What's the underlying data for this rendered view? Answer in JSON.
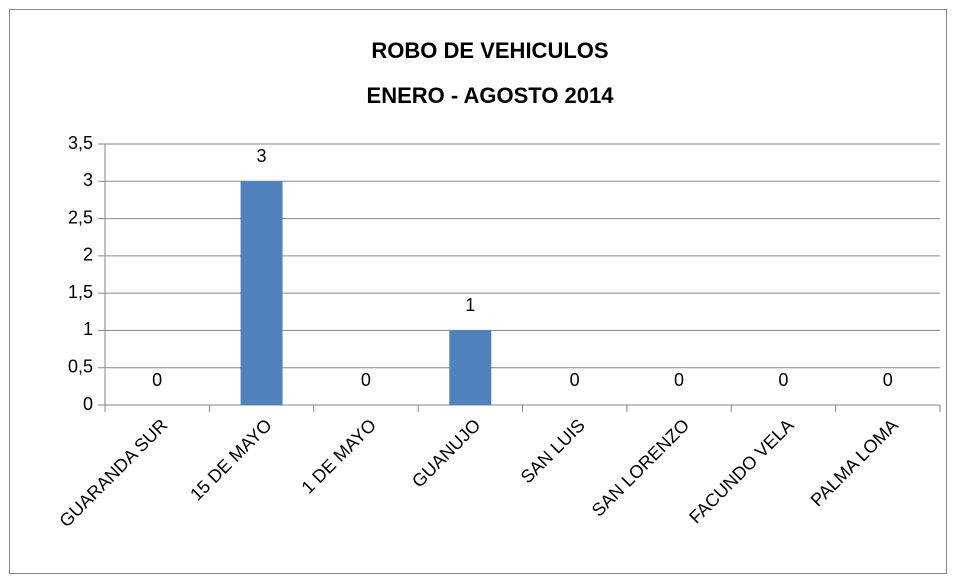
{
  "chart_data": {
    "type": "bar",
    "title": "ROBO DE VEHICULOS",
    "subtitle": "ENERO - AGOSTO 2014",
    "categories": [
      "GUARANDA SUR",
      "15 DE MAYO",
      "1 DE MAYO",
      "GUANUJO",
      "SAN LUIS",
      "SAN LORENZO",
      "FACUNDO VELA",
      "PALMA LOMA"
    ],
    "values": [
      0,
      3,
      0,
      1,
      0,
      0,
      0,
      0
    ],
    "color": "#4f81bd",
    "ylim": [
      0,
      3.5
    ],
    "yticks": [
      0,
      {
        "value": 0.5,
        "label": "0,5"
      },
      1,
      {
        "value": 1.5,
        "label": "1,5"
      },
      2,
      {
        "value": 2.5,
        "label": "2,5"
      },
      3,
      {
        "value": 3.5,
        "label": "3,5"
      }
    ],
    "grid": true
  }
}
